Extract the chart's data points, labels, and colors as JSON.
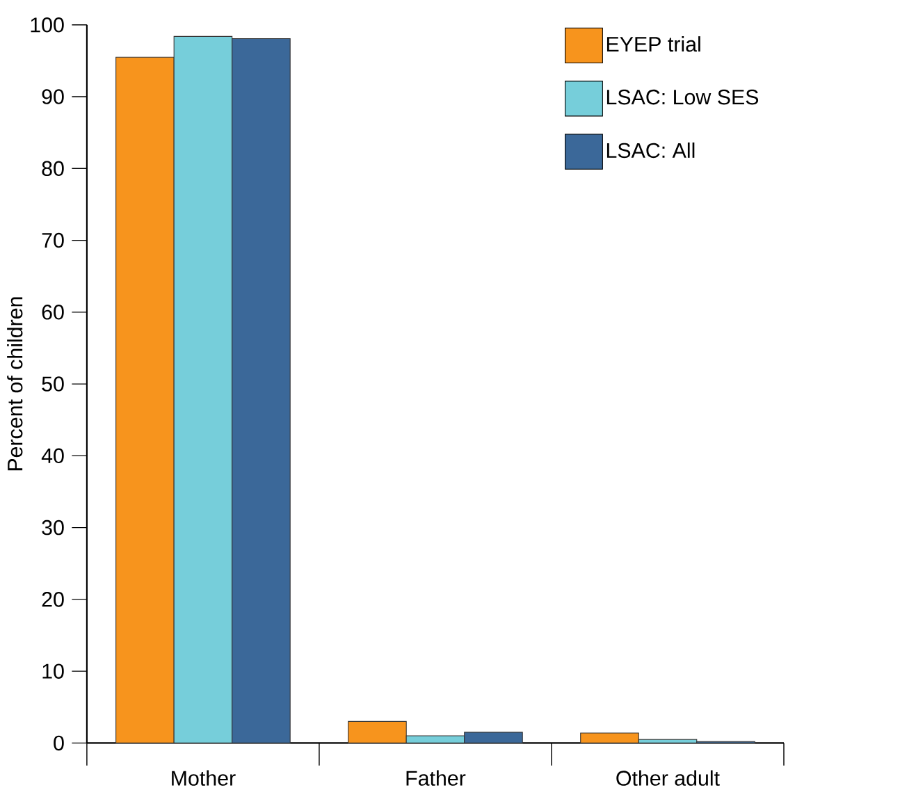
{
  "chart_data": {
    "type": "bar",
    "ylabel": "Percent of children",
    "categories": [
      "Mother",
      "Father",
      "Other adult"
    ],
    "series": [
      {
        "name": "EYEP trial",
        "color": "#f7941d",
        "values": [
          95.5,
          3.0,
          1.4
        ]
      },
      {
        "name": "LSAC: Low SES",
        "color": "#76ceda",
        "values": [
          98.4,
          1.0,
          0.5
        ]
      },
      {
        "name": "LSAC: All",
        "color": "#3b6899",
        "values": [
          98.1,
          1.5,
          0.2
        ]
      }
    ],
    "ylim": [
      0,
      100
    ],
    "yticks": [
      0,
      10,
      20,
      30,
      40,
      50,
      60,
      70,
      80,
      90,
      100
    ],
    "grid": false,
    "legend": "top right"
  }
}
